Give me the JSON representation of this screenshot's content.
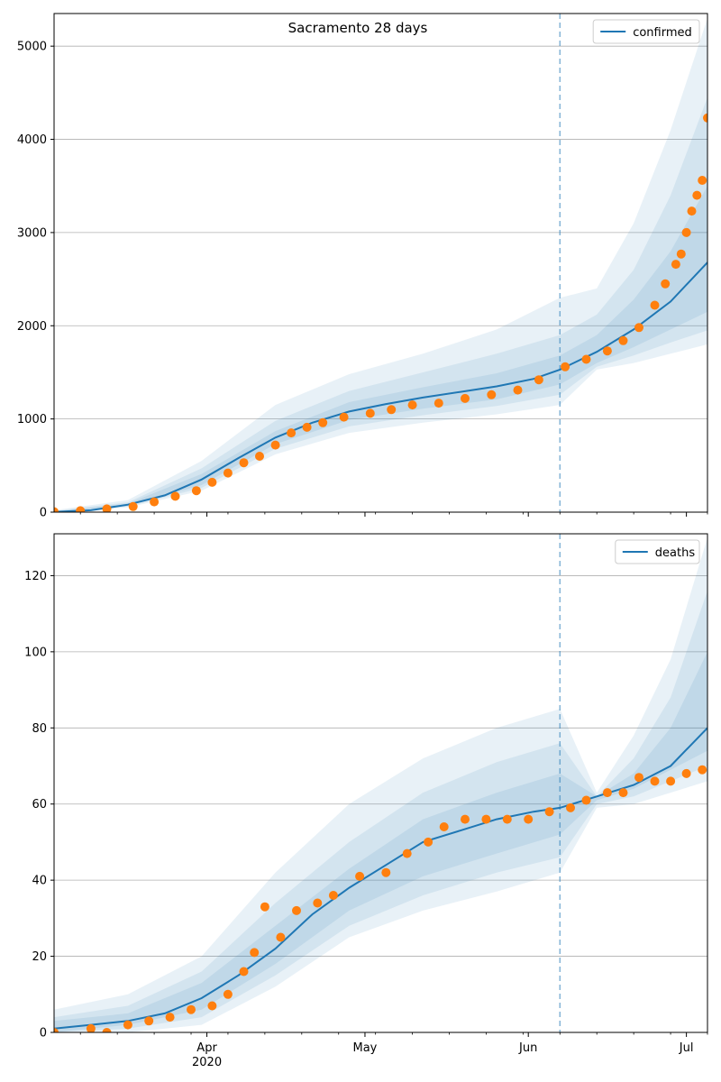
{
  "figure": {
    "title": "Sacramento 28 days"
  },
  "chart_data": [
    {
      "type": "line",
      "legend": {
        "label": "confirmed",
        "placement": "top-right"
      },
      "grid": "y",
      "ylim": [
        0,
        5350
      ],
      "yticks": [
        0,
        1000,
        2000,
        3000,
        4000,
        5000
      ],
      "xlim": [
        "2020-03-03",
        "2020-07-05"
      ],
      "xticks": [
        {
          "date": "2020-04-01",
          "label": "Apr",
          "sublabel": "2020"
        },
        {
          "date": "2020-05-01",
          "label": "May"
        },
        {
          "date": "2020-06-01",
          "label": "Jun"
        },
        {
          "date": "2020-07-01",
          "label": "Jul"
        }
      ],
      "minor_ticks": [
        "2020-03-08",
        "2020-03-15",
        "2020-03-22",
        "2020-03-29",
        "2020-04-05",
        "2020-04-12",
        "2020-04-19",
        "2020-04-26",
        "2020-05-03",
        "2020-05-10",
        "2020-05-17",
        "2020-05-24",
        "2020-05-31",
        "2020-06-07",
        "2020-06-14",
        "2020-06-21",
        "2020-06-28",
        "2020-07-05"
      ],
      "forecast_start": "2020-06-07",
      "line": {
        "x": [
          "2020-03-03",
          "2020-03-10",
          "2020-03-17",
          "2020-03-24",
          "2020-03-31",
          "2020-04-07",
          "2020-04-14",
          "2020-04-21",
          "2020-04-28",
          "2020-05-05",
          "2020-05-12",
          "2020-05-19",
          "2020-05-26",
          "2020-06-02",
          "2020-06-07",
          "2020-06-14",
          "2020-06-21",
          "2020-06-28",
          "2020-07-05"
        ],
        "y": [
          2,
          20,
          80,
          180,
          350,
          580,
          800,
          960,
          1080,
          1160,
          1230,
          1290,
          1350,
          1430,
          1530,
          1720,
          1960,
          2260,
          2680
        ]
      },
      "bands": [
        {
          "x": [
            "2020-03-03",
            "2020-03-17",
            "2020-03-31",
            "2020-04-14",
            "2020-04-28",
            "2020-05-12",
            "2020-05-26",
            "2020-06-07",
            "2020-06-14",
            "2020-06-21",
            "2020-06-28",
            "2020-07-05"
          ],
          "low": [
            0,
            50,
            230,
            620,
            850,
            960,
            1050,
            1150,
            1530,
            1600,
            1700,
            1800
          ],
          "high": [
            20,
            130,
            550,
            1150,
            1480,
            1700,
            1960,
            2300,
            2400,
            3100,
            4100,
            5300
          ]
        },
        {
          "x": [
            "2020-03-03",
            "2020-03-17",
            "2020-03-31",
            "2020-04-14",
            "2020-04-28",
            "2020-05-12",
            "2020-05-26",
            "2020-06-07",
            "2020-06-14",
            "2020-06-21",
            "2020-06-28",
            "2020-07-05"
          ],
          "low": [
            0,
            60,
            260,
            680,
            920,
            1040,
            1140,
            1260,
            1560,
            1680,
            1820,
            1950
          ],
          "high": [
            12,
            105,
            470,
            980,
            1300,
            1500,
            1700,
            1900,
            2120,
            2600,
            3400,
            4450
          ]
        },
        {
          "x": [
            "2020-03-03",
            "2020-03-17",
            "2020-03-31",
            "2020-04-14",
            "2020-04-28",
            "2020-05-12",
            "2020-05-26",
            "2020-06-07",
            "2020-06-14",
            "2020-06-21",
            "2020-06-28",
            "2020-07-05"
          ],
          "low": [
            0,
            68,
            290,
            730,
            990,
            1110,
            1210,
            1370,
            1600,
            1770,
            1960,
            2150
          ],
          "high": [
            8,
            92,
            410,
            870,
            1180,
            1340,
            1490,
            1680,
            1900,
            2280,
            2800,
            3500
          ]
        }
      ],
      "points": {
        "x": [
          "2020-03-03",
          "2020-03-08",
          "2020-03-13",
          "2020-03-18",
          "2020-03-22",
          "2020-03-26",
          "2020-03-30",
          "2020-04-02",
          "2020-04-05",
          "2020-04-08",
          "2020-04-11",
          "2020-04-14",
          "2020-04-17",
          "2020-04-20",
          "2020-04-23",
          "2020-04-27",
          "2020-05-02",
          "2020-05-06",
          "2020-05-10",
          "2020-05-15",
          "2020-05-20",
          "2020-05-25",
          "2020-05-30",
          "2020-06-03",
          "2020-06-08",
          "2020-06-12",
          "2020-06-16",
          "2020-06-19",
          "2020-06-22",
          "2020-06-25",
          "2020-06-27",
          "2020-06-29",
          "2020-06-30",
          "2020-07-01",
          "2020-07-02",
          "2020-07-03",
          "2020-07-04",
          "2020-07-05"
        ],
        "y": [
          5,
          15,
          35,
          60,
          110,
          170,
          230,
          320,
          420,
          530,
          600,
          720,
          850,
          910,
          960,
          1020,
          1060,
          1100,
          1150,
          1170,
          1220,
          1260,
          1310,
          1420,
          1560,
          1640,
          1730,
          1840,
          1980,
          2220,
          2450,
          2660,
          2770,
          3000,
          3230,
          3400,
          3560,
          4230
        ]
      }
    },
    {
      "type": "line",
      "legend": {
        "label": "deaths",
        "placement": "top-right"
      },
      "grid": "y",
      "ylim": [
        0,
        131
      ],
      "yticks": [
        0,
        20,
        40,
        60,
        80,
        100,
        120
      ],
      "xlim": [
        "2020-03-03",
        "2020-07-05"
      ],
      "xticks": [
        {
          "date": "2020-04-01",
          "label": "Apr",
          "sublabel": "2020"
        },
        {
          "date": "2020-05-01",
          "label": "May"
        },
        {
          "date": "2020-06-01",
          "label": "Jun"
        },
        {
          "date": "2020-07-01",
          "label": "Jul"
        }
      ],
      "minor_ticks": [
        "2020-03-08",
        "2020-03-15",
        "2020-03-22",
        "2020-03-29",
        "2020-04-05",
        "2020-04-12",
        "2020-04-19",
        "2020-04-26",
        "2020-05-03",
        "2020-05-10",
        "2020-05-17",
        "2020-05-24",
        "2020-05-31",
        "2020-06-07",
        "2020-06-14",
        "2020-06-21",
        "2020-06-28",
        "2020-07-05"
      ],
      "forecast_start": "2020-06-07",
      "line": {
        "x": [
          "2020-03-03",
          "2020-03-10",
          "2020-03-17",
          "2020-03-24",
          "2020-03-31",
          "2020-04-07",
          "2020-04-14",
          "2020-04-21",
          "2020-04-28",
          "2020-05-05",
          "2020-05-12",
          "2020-05-19",
          "2020-05-26",
          "2020-06-02",
          "2020-06-07",
          "2020-06-14",
          "2020-06-21",
          "2020-06-28",
          "2020-07-05"
        ],
        "y": [
          1,
          2,
          3,
          5,
          9,
          15,
          22,
          31,
          38,
          44,
          50,
          53,
          56,
          58,
          59,
          62,
          65,
          70,
          80
        ]
      },
      "bands": [
        {
          "x": [
            "2020-03-03",
            "2020-03-17",
            "2020-03-31",
            "2020-04-14",
            "2020-04-28",
            "2020-05-12",
            "2020-05-26",
            "2020-06-07",
            "2020-06-14",
            "2020-06-21",
            "2020-06-28",
            "2020-07-05"
          ],
          "low": [
            0,
            0,
            2,
            12,
            25,
            32,
            37,
            42,
            59,
            60,
            63,
            66
          ],
          "high": [
            6,
            10,
            20,
            42,
            60,
            72,
            80,
            85,
            63,
            78,
            98,
            130
          ]
        },
        {
          "x": [
            "2020-03-03",
            "2020-03-17",
            "2020-03-31",
            "2020-04-14",
            "2020-04-28",
            "2020-05-12",
            "2020-05-26",
            "2020-06-07",
            "2020-06-14",
            "2020-06-21",
            "2020-06-28",
            "2020-07-05"
          ],
          "low": [
            0,
            1,
            4,
            15,
            28,
            36,
            42,
            46,
            60,
            62,
            66,
            70
          ],
          "high": [
            4,
            7,
            16,
            34,
            50,
            63,
            71,
            76,
            62,
            72,
            88,
            116
          ]
        },
        {
          "x": [
            "2020-03-03",
            "2020-03-17",
            "2020-03-31",
            "2020-04-14",
            "2020-04-28",
            "2020-05-12",
            "2020-05-26",
            "2020-06-07",
            "2020-06-14",
            "2020-06-21",
            "2020-06-28",
            "2020-07-05"
          ],
          "low": [
            0,
            2,
            6,
            18,
            32,
            41,
            47,
            52,
            61,
            64,
            69,
            74
          ],
          "high": [
            3,
            5,
            13,
            28,
            43,
            56,
            63,
            68,
            62,
            68,
            80,
            100
          ]
        }
      ],
      "points": {
        "x": [
          "2020-03-03",
          "2020-03-10",
          "2020-03-13",
          "2020-03-17",
          "2020-03-21",
          "2020-03-25",
          "2020-03-29",
          "2020-04-02",
          "2020-04-05",
          "2020-04-08",
          "2020-04-10",
          "2020-04-12",
          "2020-04-15",
          "2020-04-18",
          "2020-04-22",
          "2020-04-25",
          "2020-04-30",
          "2020-05-05",
          "2020-05-09",
          "2020-05-13",
          "2020-05-16",
          "2020-05-20",
          "2020-05-24",
          "2020-05-28",
          "2020-06-01",
          "2020-06-05",
          "2020-06-09",
          "2020-06-12",
          "2020-06-16",
          "2020-06-19",
          "2020-06-22",
          "2020-06-25",
          "2020-06-28",
          "2020-07-01",
          "2020-07-04"
        ],
        "y": [
          0,
          1,
          0,
          2,
          3,
          4,
          6,
          7,
          10,
          16,
          21,
          33,
          25,
          32,
          34,
          36,
          41,
          42,
          47,
          50,
          54,
          56,
          56,
          56,
          56,
          58,
          59,
          61,
          63,
          63,
          67,
          66,
          66,
          68,
          69
        ]
      }
    }
  ]
}
